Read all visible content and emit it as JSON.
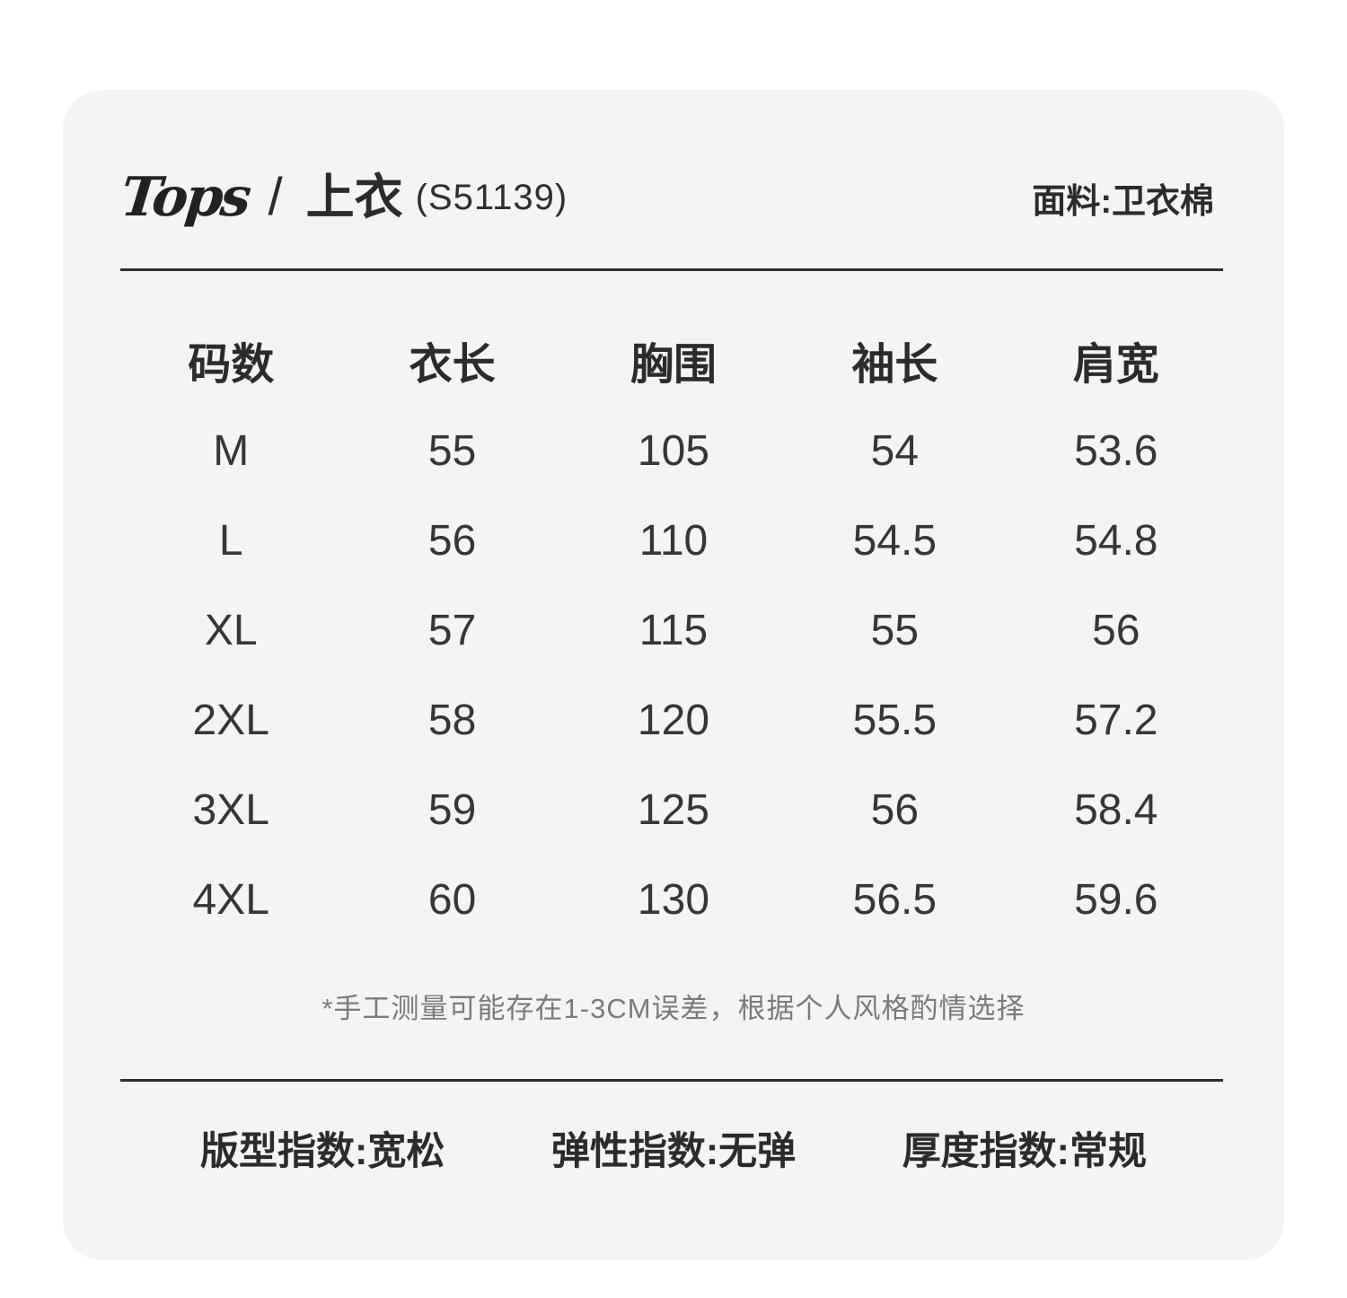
{
  "colors": {
    "page_bg": "#ffffff",
    "card_bg": "#f5f4f2",
    "text_primary": "#2b2b2b",
    "text_value": "#363636",
    "text_note": "#7a7a7a",
    "divider": "#2d2d2d"
  },
  "header": {
    "brand": "Tops",
    "separator": "/",
    "title": "上衣",
    "code": "(S51139)",
    "fabric": "面料:卫衣棉"
  },
  "chart_data": {
    "type": "table",
    "title": "上衣 (S51139)",
    "columns": [
      "码数",
      "衣长",
      "胸围",
      "袖长",
      "肩宽"
    ],
    "rows": [
      [
        "M",
        "55",
        "105",
        "54",
        "53.6"
      ],
      [
        "L",
        "56",
        "110",
        "54.5",
        "54.8"
      ],
      [
        "XL",
        "57",
        "115",
        "55",
        "56"
      ],
      [
        "2XL",
        "58",
        "120",
        "55.5",
        "57.2"
      ],
      [
        "3XL",
        "59",
        "125",
        "56",
        "58.4"
      ],
      [
        "4XL",
        "60",
        "130",
        "56.5",
        "59.6"
      ]
    ]
  },
  "note": "*手工测量可能存在1-3CM误差，根据个人风格酌情选择",
  "footer": {
    "fit": "版型指数:宽松",
    "elasticity": "弹性指数:无弹",
    "thickness": "厚度指数:常规"
  }
}
